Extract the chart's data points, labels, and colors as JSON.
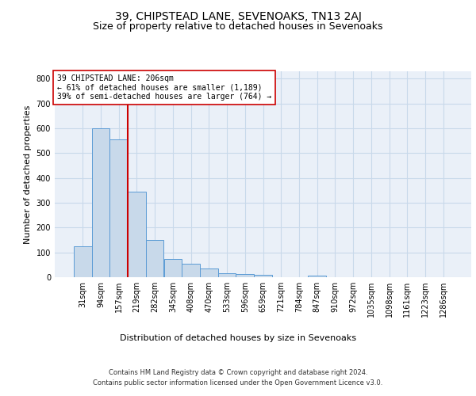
{
  "title": "39, CHIPSTEAD LANE, SEVENOAKS, TN13 2AJ",
  "subtitle": "Size of property relative to detached houses in Sevenoaks",
  "xlabel": "Distribution of detached houses by size in Sevenoaks",
  "ylabel": "Number of detached properties",
  "categories": [
    "31sqm",
    "94sqm",
    "157sqm",
    "219sqm",
    "282sqm",
    "345sqm",
    "408sqm",
    "470sqm",
    "533sqm",
    "596sqm",
    "659sqm",
    "721sqm",
    "784sqm",
    "847sqm",
    "910sqm",
    "972sqm",
    "1035sqm",
    "1098sqm",
    "1161sqm",
    "1223sqm",
    "1286sqm"
  ],
  "values": [
    125,
    600,
    555,
    345,
    150,
    75,
    55,
    35,
    15,
    13,
    10,
    0,
    0,
    7,
    0,
    0,
    0,
    0,
    0,
    0,
    0
  ],
  "bar_color": "#c8d9ea",
  "bar_edge_color": "#5b9bd5",
  "grid_color": "#c8d9ea",
  "vline_x": 2.5,
  "vline_color": "#cc0000",
  "annotation_text": "39 CHIPSTEAD LANE: 206sqm\n← 61% of detached houses are smaller (1,189)\n39% of semi-detached houses are larger (764) →",
  "annotation_box_color": "#ffffff",
  "annotation_box_edgecolor": "#cc0000",
  "ylim": [
    0,
    830
  ],
  "yticks": [
    0,
    100,
    200,
    300,
    400,
    500,
    600,
    700,
    800
  ],
  "footer_line1": "Contains HM Land Registry data © Crown copyright and database right 2024.",
  "footer_line2": "Contains public sector information licensed under the Open Government Licence v3.0.",
  "bg_color": "#eaf0f8",
  "plot_bg_color": "#eaf0f8",
  "title_fontsize": 10,
  "subtitle_fontsize": 9,
  "tick_fontsize": 7,
  "ylabel_fontsize": 8,
  "xlabel_fontsize": 8,
  "footer_fontsize": 6,
  "annotation_fontsize": 7
}
